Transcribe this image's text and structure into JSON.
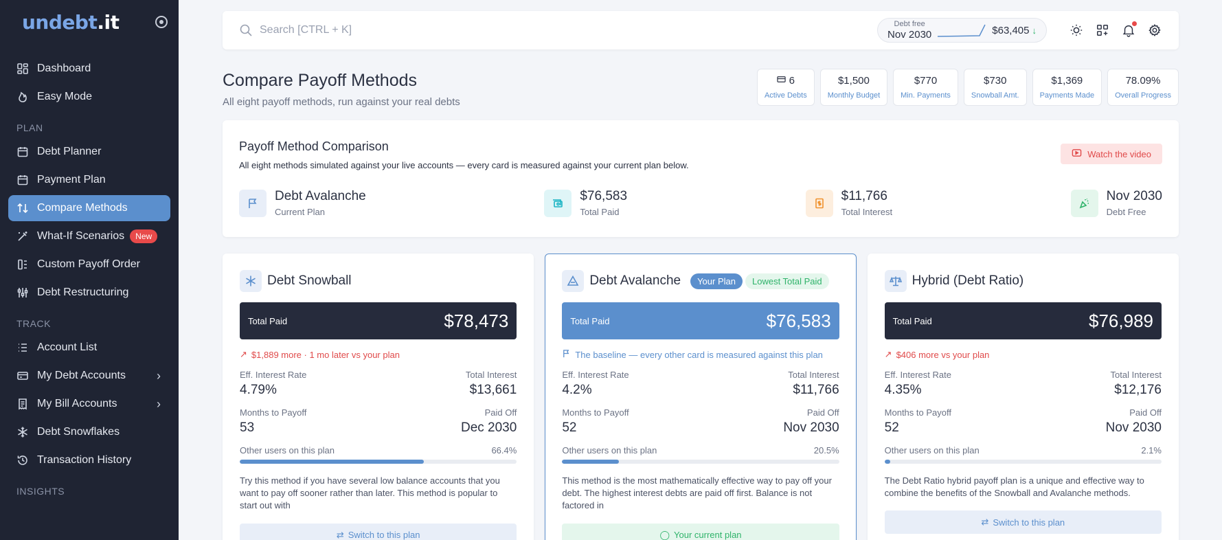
{
  "sidebar": {
    "logo_text": "undebt",
    "logo_dot": ".",
    "logo_suffix": "it",
    "items_top": [
      {
        "label": "Dashboard",
        "icon": "dashboard-icon"
      },
      {
        "label": "Easy Mode",
        "icon": "flame-icon"
      }
    ],
    "section_plan": "PLAN",
    "items_plan": [
      {
        "label": "Debt Planner",
        "icon": "calendar-icon"
      },
      {
        "label": "Payment Plan",
        "icon": "calendar-icon"
      },
      {
        "label": "Compare Methods",
        "icon": "compare-icon",
        "active": true
      },
      {
        "label": "What-If Scenarios",
        "icon": "wand-icon",
        "badge": "New"
      },
      {
        "label": "Custom Payoff Order",
        "icon": "order-icon"
      },
      {
        "label": "Debt Restructuring",
        "icon": "sliders-icon"
      }
    ],
    "section_track": "TRACK",
    "items_track": [
      {
        "label": "Account List",
        "icon": "list-icon"
      },
      {
        "label": "My Debt Accounts",
        "icon": "card-icon",
        "chevron": true
      },
      {
        "label": "My Bill Accounts",
        "icon": "receipt-icon",
        "chevron": true
      },
      {
        "label": "Debt Snowflakes",
        "icon": "snowflake-icon"
      },
      {
        "label": "Transaction History",
        "icon": "history-icon"
      }
    ],
    "section_insights": "INSIGHTS"
  },
  "topbar": {
    "search_placeholder": "Search [CTRL + K]",
    "debt_free_label": "Debt free",
    "debt_free_date": "Nov 2030",
    "debt_total": "$63,405",
    "accent": "#5b8fcd"
  },
  "page": {
    "title": "Compare Payoff Methods",
    "subtitle": "All eight payoff methods, run against your real debts"
  },
  "stats": [
    {
      "value": "6",
      "label": "Active Debts",
      "icon": "card-icon"
    },
    {
      "value": "$1,500",
      "label": "Monthly Budget"
    },
    {
      "value": "$770",
      "label": "Min. Payments"
    },
    {
      "value": "$730",
      "label": "Snowball Amt."
    },
    {
      "value": "$1,369",
      "label": "Payments Made"
    },
    {
      "value": "78.09%",
      "label": "Overall Progress"
    }
  ],
  "comparison": {
    "title": "Payoff Method Comparison",
    "description": "All eight methods simulated against your live accounts — every card is measured against your current plan below.",
    "watch_label": "Watch the video",
    "metrics": [
      {
        "value": "Debt Avalanche",
        "label": "Current Plan",
        "icon": "flag-icon",
        "bg": "#e8eef8",
        "fg": "#5b8fcd"
      },
      {
        "value": "$76,583",
        "label": "Total Paid",
        "icon": "money-icon",
        "bg": "#dff5f7",
        "fg": "#19b4c4"
      },
      {
        "value": "$11,766",
        "label": "Total Interest",
        "icon": "invoice-icon",
        "bg": "#fdeede",
        "fg": "#f0922e"
      },
      {
        "value": "Nov 2030",
        "label": "Debt Free",
        "icon": "confetti-icon",
        "bg": "#e4f6ec",
        "fg": "#2fb36a"
      }
    ]
  },
  "cards": [
    {
      "title": "Debt Snowball",
      "icon": "snowflake-icon",
      "total_label": "Total Paid",
      "total_value": "$78,473",
      "delta": "$1,889 more · 1 mo later vs your plan",
      "rate_label": "Eff. Interest Rate",
      "rate": "4.79%",
      "interest_label": "Total Interest",
      "interest": "$13,661",
      "months_label": "Months to Payoff",
      "months": "53",
      "paid_off_label": "Paid Off",
      "paid_off": "Dec 2030",
      "users_label": "Other users on this plan",
      "users_pct": "66.4%",
      "users_fraction": 0.664,
      "description": "Try this method if you have several low balance accounts that you want to pay off sooner rather than later. This method is popular to start out with",
      "button": "Switch to this plan"
    },
    {
      "title": "Debt Avalanche",
      "icon": "triangle-icon",
      "tag_plan": "Your Plan",
      "tag_lowest": "Lowest Total Paid",
      "total_label": "Total Paid",
      "total_value": "$76,583",
      "delta": "The baseline — every other card is measured against this plan",
      "rate_label": "Eff. Interest Rate",
      "rate": "4.2%",
      "interest_label": "Total Interest",
      "interest": "$11,766",
      "months_label": "Months to Payoff",
      "months": "52",
      "paid_off_label": "Paid Off",
      "paid_off": "Nov 2030",
      "users_label": "Other users on this plan",
      "users_pct": "20.5%",
      "users_fraction": 0.205,
      "description": "This method is the most mathematically effective way to pay off your debt. The highest interest debts are paid off first. Balance is not factored in",
      "button": "Your current plan"
    },
    {
      "title": "Hybrid (Debt Ratio)",
      "icon": "scale-icon",
      "total_label": "Total Paid",
      "total_value": "$76,989",
      "delta": "$406 more vs your plan",
      "rate_label": "Eff. Interest Rate",
      "rate": "4.35%",
      "interest_label": "Total Interest",
      "interest": "$12,176",
      "months_label": "Months to Payoff",
      "months": "52",
      "paid_off_label": "Paid Off",
      "paid_off": "Nov 2030",
      "users_label": "Other users on this plan",
      "users_pct": "2.1%",
      "users_fraction": 0.021,
      "description": "The Debt Ratio hybrid payoff plan is a unique and effective way to combine the benefits of the Snowball and Avalanche methods.",
      "button": "Switch to this plan"
    }
  ]
}
